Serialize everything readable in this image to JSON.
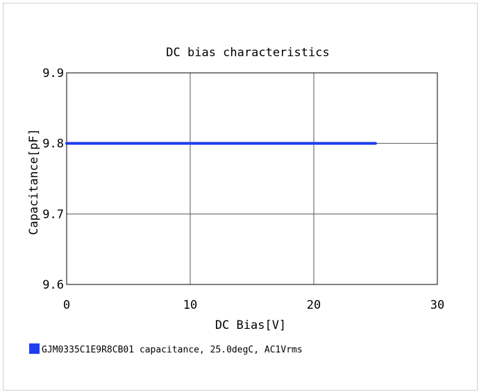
{
  "chart_data": {
    "type": "line",
    "title": "DC bias characteristics",
    "xlabel": "DC Bias[V]",
    "ylabel": "Capacitance[pF]",
    "xlim": [
      0,
      30
    ],
    "ylim": [
      9.6,
      9.9
    ],
    "x_ticks": [
      {
        "value": 0,
        "label": "0"
      },
      {
        "value": 10,
        "label": "10"
      },
      {
        "value": 20,
        "label": "20"
      },
      {
        "value": 30,
        "label": "30"
      }
    ],
    "y_ticks": [
      {
        "value": 9.6,
        "label": "9.6"
      },
      {
        "value": 9.7,
        "label": "9.7"
      },
      {
        "value": 9.8,
        "label": "9.8"
      },
      {
        "value": 9.9,
        "label": "9.9"
      }
    ],
    "grid": true,
    "legend_position": "bottom-left",
    "series": [
      {
        "name": "GJM0335C1E9R8CB01 capacitance, 25.0degC, AC1Vrms",
        "color": "#1f3df0",
        "x": [
          0,
          5,
          10,
          15,
          20,
          25
        ],
        "y": [
          9.8,
          9.8,
          9.8,
          9.8,
          9.8,
          9.8
        ]
      }
    ]
  }
}
